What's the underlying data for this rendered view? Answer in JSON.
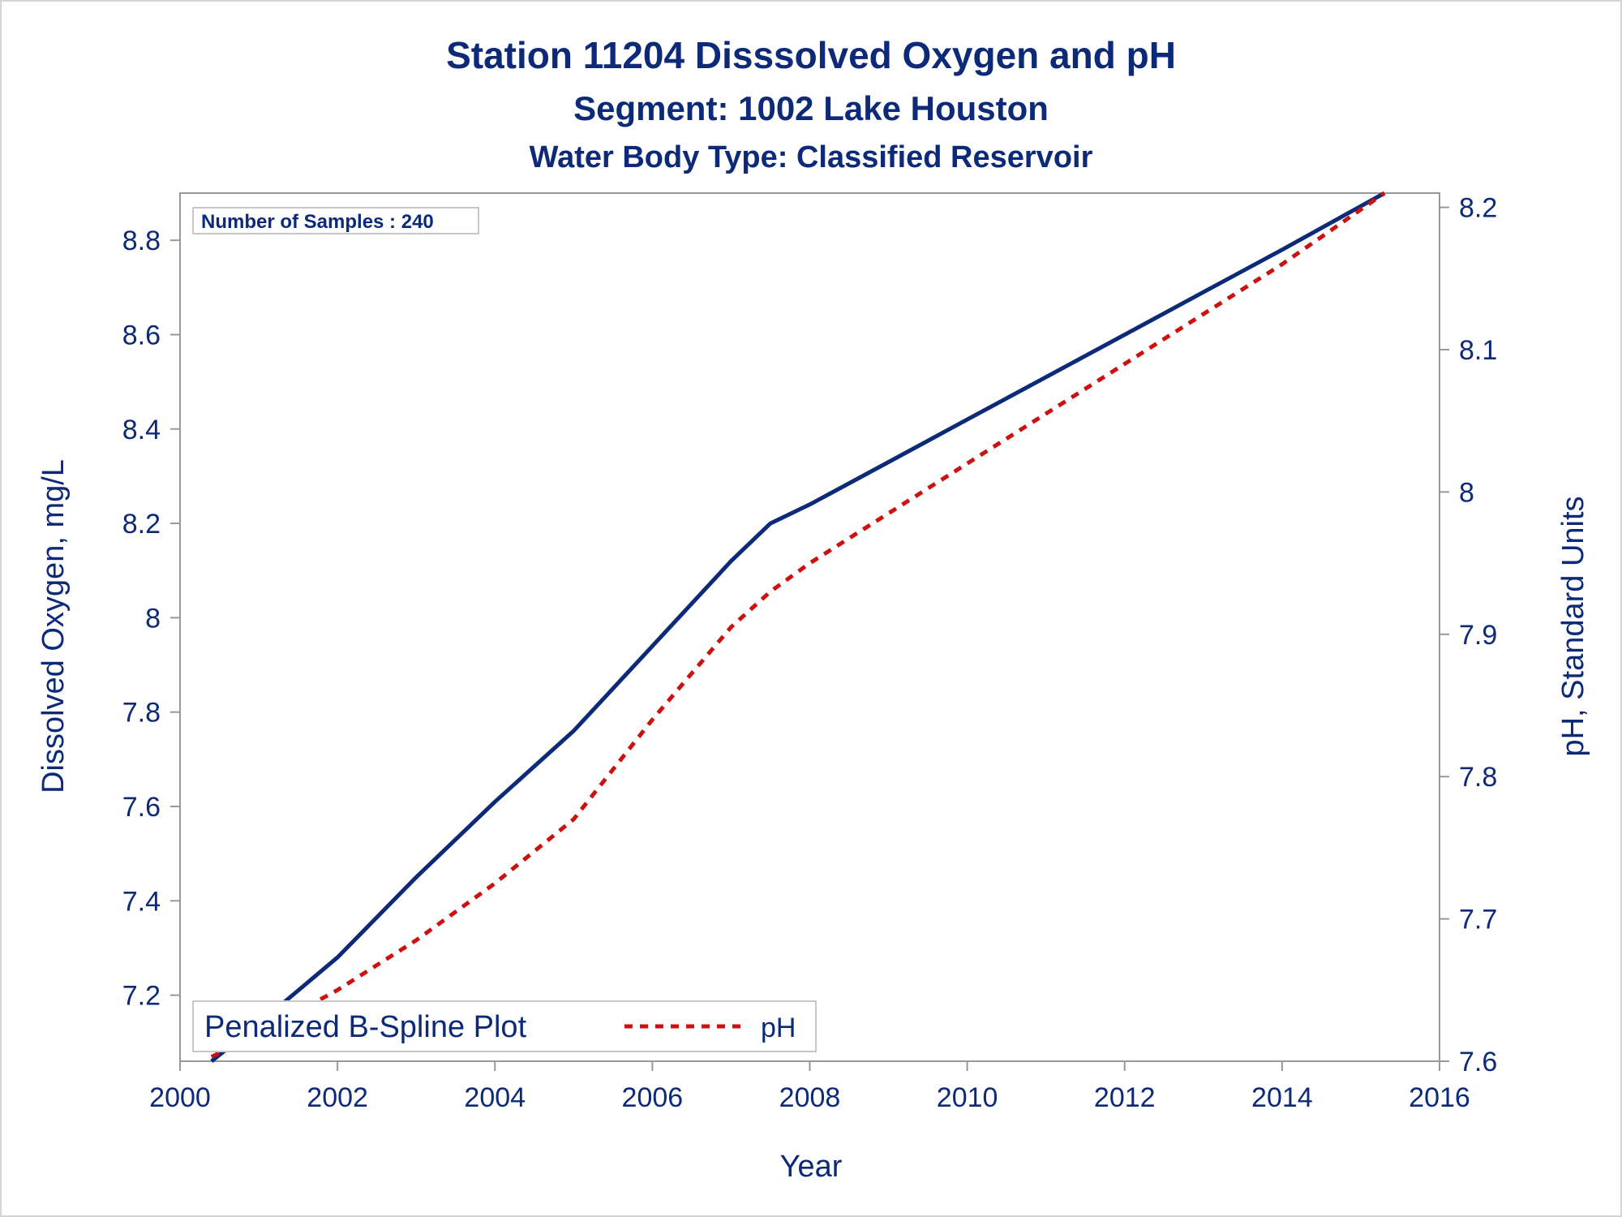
{
  "chart_data": {
    "type": "line",
    "title": "Station 11204   Disssolved Oxygen and pH",
    "subtitle": "Segment: 1002  Lake Houston",
    "subtitle2": "Water Body Type: Classified Reservoir",
    "xlabel": "Year",
    "ylabel": "Dissolved Oxygen, mg/L",
    "y2label": "pH, Standard Units",
    "xlim": [
      2000,
      2016
    ],
    "ylim": [
      7.06,
      8.9
    ],
    "y2lim": [
      7.6,
      8.21
    ],
    "xticks": [
      "2000",
      "2002",
      "2004",
      "2006",
      "2008",
      "2010",
      "2012",
      "2014",
      "2016"
    ],
    "yticks": [
      "7.2",
      "7.4",
      "7.6",
      "7.8",
      "8",
      "8.2",
      "8.4",
      "8.6",
      "8.8"
    ],
    "y2ticks": [
      "7.6",
      "7.7",
      "7.8",
      "7.9",
      "8",
      "8.1",
      "8.2"
    ],
    "annotation": "Number of Samples : 240",
    "legend_title": "Penalized B-Spline Plot",
    "legend_position": "bottom-left",
    "grid": false,
    "series": [
      {
        "axis": "left",
        "color": "#0c2a78",
        "style": "solid",
        "x": [
          2000.4,
          2001.0,
          2002.0,
          2003.0,
          2004.0,
          2005.0,
          2006.0,
          2007.0,
          2007.5,
          2008.0,
          2009.0,
          2010.0,
          2011.0,
          2012.0,
          2013.0,
          2014.0,
          2015.3
        ],
        "values": [
          7.06,
          7.14,
          7.28,
          7.45,
          7.61,
          7.76,
          7.94,
          8.12,
          8.2,
          8.24,
          8.33,
          8.42,
          8.51,
          8.6,
          8.69,
          8.78,
          8.9
        ]
      },
      {
        "name": "pH",
        "axis": "right",
        "color": "#cc1111",
        "style": "dashed",
        "x": [
          2000.4,
          2001.0,
          2002.0,
          2003.0,
          2004.0,
          2005.0,
          2006.0,
          2007.0,
          2007.5,
          2008.0,
          2009.0,
          2010.0,
          2011.0,
          2012.0,
          2013.0,
          2014.0,
          2015.3
        ],
        "values": [
          7.603,
          7.62,
          7.65,
          7.685,
          7.725,
          7.77,
          7.84,
          7.905,
          7.93,
          7.95,
          7.985,
          8.02,
          8.055,
          8.09,
          8.125,
          8.16,
          8.21
        ]
      }
    ]
  }
}
